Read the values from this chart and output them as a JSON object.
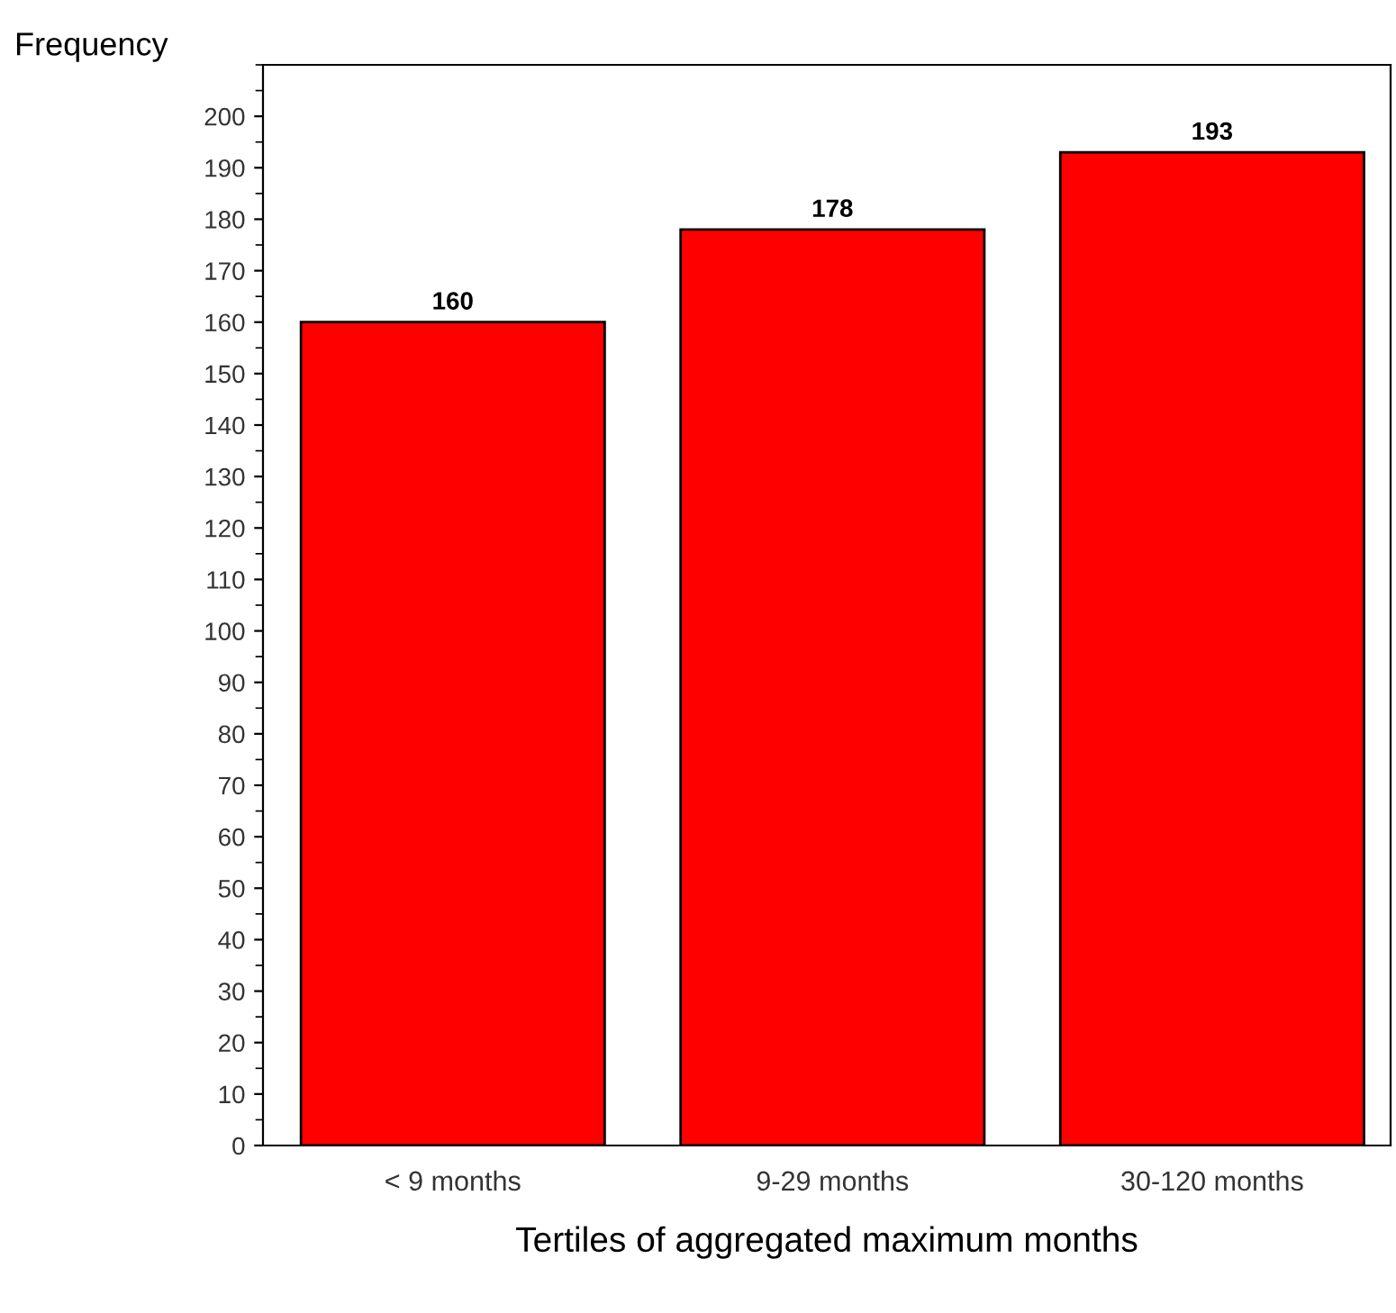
{
  "chart_data": {
    "type": "bar",
    "xlabel": "Tertiles of aggregated maximum months",
    "ylabel": "Frequency",
    "categories": [
      "< 9 months",
      "9-29 months",
      "30-120 months"
    ],
    "values": [
      160,
      178,
      193
    ],
    "color": "#ff0000",
    "ylim": [
      0,
      210
    ],
    "yticks": [
      0,
      10,
      20,
      30,
      40,
      50,
      60,
      70,
      80,
      90,
      100,
      110,
      120,
      130,
      140,
      150,
      160,
      170,
      180,
      190,
      200
    ],
    "data_labels": true,
    "grid": false,
    "legend": false
  }
}
